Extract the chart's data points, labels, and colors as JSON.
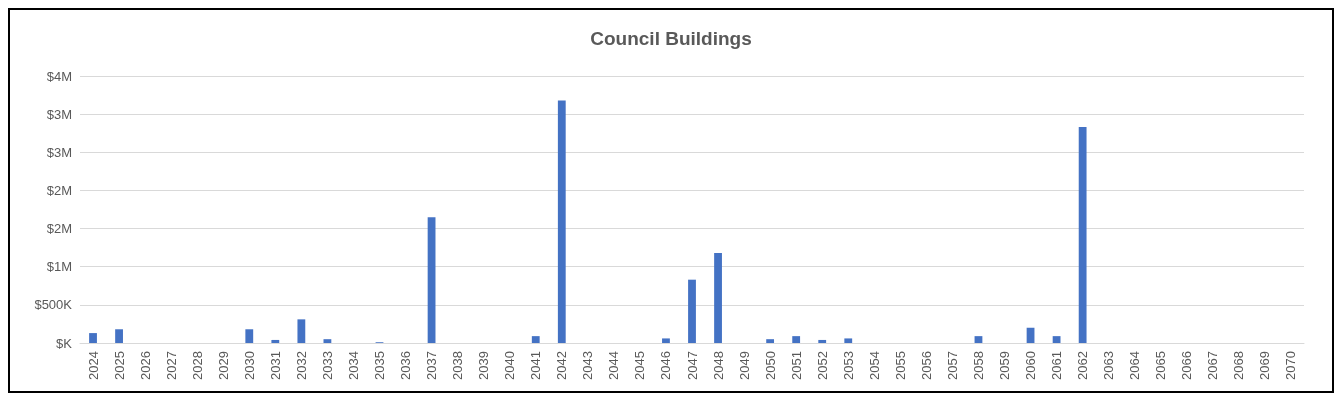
{
  "chart_data": {
    "type": "bar",
    "title": "Council Buildings",
    "categories": [
      "2024",
      "2025",
      "2026",
      "2027",
      "2028",
      "2029",
      "2030",
      "2031",
      "2032",
      "2033",
      "2034",
      "2035",
      "2036",
      "2037",
      "2038",
      "2039",
      "2040",
      "2041",
      "2042",
      "2043",
      "2044",
      "2045",
      "2046",
      "2047",
      "2048",
      "2049",
      "2050",
      "2051",
      "2052",
      "2053",
      "2054",
      "2055",
      "2056",
      "2057",
      "2058",
      "2059",
      "2060",
      "2061",
      "2062",
      "2063",
      "2064",
      "2065",
      "2066",
      "2067",
      "2068",
      "2069",
      "2070"
    ],
    "values": [
      130000,
      180000,
      0,
      0,
      0,
      0,
      180000,
      40000,
      310000,
      50000,
      0,
      10000,
      0,
      1650000,
      0,
      0,
      0,
      90000,
      3180000,
      0,
      0,
      0,
      60000,
      830000,
      1180000,
      0,
      50000,
      90000,
      40000,
      60000,
      0,
      0,
      0,
      0,
      90000,
      0,
      200000,
      90000,
      2830000,
      0,
      0,
      0,
      0,
      0,
      0,
      0,
      0
    ],
    "color": "#4472c4",
    "ylim": [
      0,
      3500000
    ],
    "yticks": [
      {
        "value": 0,
        "label": "$K"
      },
      {
        "value": 500000,
        "label": "$500K"
      },
      {
        "value": 1000000,
        "label": "$1M"
      },
      {
        "value": 1500000,
        "label": "$2M"
      },
      {
        "value": 2000000,
        "label": "$2M"
      },
      {
        "value": 2500000,
        "label": "$3M"
      },
      {
        "value": 3000000,
        "label": "$3M"
      },
      {
        "value": 3500000,
        "label": "$4M"
      }
    ],
    "grid": "y"
  }
}
